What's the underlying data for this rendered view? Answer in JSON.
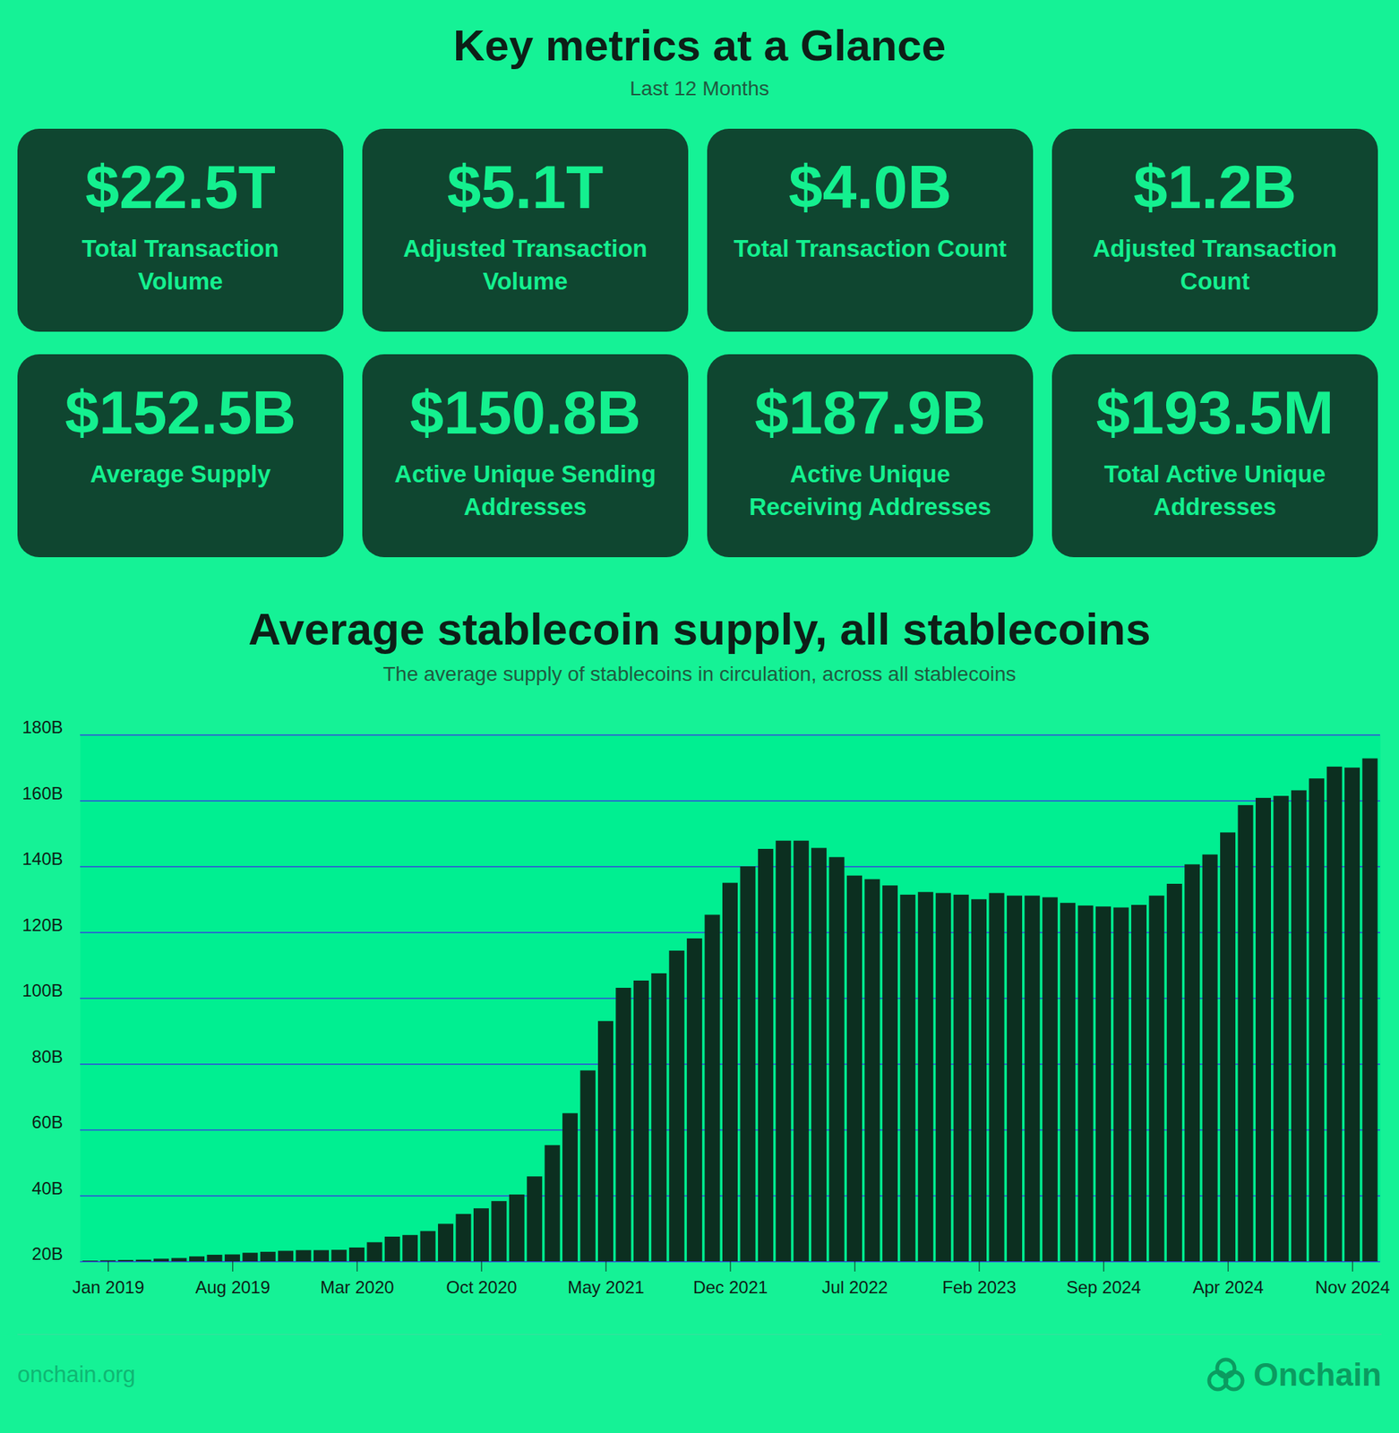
{
  "header": {
    "title": "Key metrics at a Glance",
    "subtitle": "Last 12 Months"
  },
  "metrics": [
    {
      "value": "$22.5T",
      "label": "Total Transaction Volume"
    },
    {
      "value": "$5.1T",
      "label": "Adjusted Transaction Volume"
    },
    {
      "value": "$4.0B",
      "label": "Total Transaction Count"
    },
    {
      "value": "$1.2B",
      "label": "Adjusted Transaction Count"
    },
    {
      "value": "$152.5B",
      "label": "Average Supply"
    },
    {
      "value": "$150.8B",
      "label": "Active Unique Sending Addresses"
    },
    {
      "value": "$187.9B",
      "label": "Active Unique Receiving Addresses"
    },
    {
      "value": "$193.5M",
      "label": "Total Active Unique Addresses"
    }
  ],
  "chart_data": {
    "type": "bar",
    "title": "Average stablecoin supply, all stablecoins",
    "subtitle": "The average supply of stablecoins in circulation, across all stablecoins",
    "categories": [
      null,
      "Jan 2019",
      null,
      null,
      null,
      null,
      null,
      null,
      "Aug 2019",
      null,
      null,
      null,
      null,
      null,
      null,
      "Mar 2020",
      null,
      null,
      null,
      null,
      null,
      null,
      "Oct 2020",
      null,
      null,
      null,
      null,
      null,
      null,
      "May 2021",
      null,
      null,
      null,
      null,
      null,
      null,
      "Dec 2021",
      null,
      null,
      null,
      null,
      null,
      null,
      "Jul 2022",
      null,
      null,
      null,
      null,
      null,
      null,
      "Feb 2023",
      null,
      null,
      null,
      null,
      null,
      null,
      "Sep 2024",
      null,
      null,
      null,
      null,
      null,
      null,
      "Apr 2024",
      null,
      null,
      null,
      null,
      null,
      null,
      "Nov 2024",
      null
    ],
    "values": [
      20.2,
      20.3,
      20.4,
      20.5,
      20.8,
      21.0,
      21.5,
      22.0,
      22.1,
      22.6,
      22.9,
      23.2,
      23.4,
      23.4,
      23.5,
      24.2,
      25.8,
      27.5,
      28.0,
      29.2,
      31.4,
      34.4,
      36.1,
      38.3,
      40.3,
      45.8,
      55.3,
      65.0,
      78.0,
      93.0,
      103.1,
      105.3,
      107.5,
      114.4,
      118.1,
      125.3,
      135.0,
      140.0,
      145.3,
      147.8,
      147.8,
      145.6,
      142.8,
      137.2,
      136.1,
      134.2,
      131.4,
      132.2,
      131.9,
      131.4,
      130.0,
      131.9,
      131.1,
      131.1,
      130.6,
      128.9,
      128.1,
      127.8,
      127.5,
      128.3,
      131.1,
      134.7,
      140.6,
      143.6,
      150.3,
      158.6,
      160.8,
      161.4,
      163.1,
      166.7,
      170.3,
      170.0,
      172.8
    ],
    "color": "#0c2f20",
    "ylim": [
      20,
      180
    ],
    "yticks": [
      {
        "value": 20,
        "label": "20B"
      },
      {
        "value": 40,
        "label": "40B"
      },
      {
        "value": 60,
        "label": "60B"
      },
      {
        "value": 80,
        "label": "80B"
      },
      {
        "value": 100,
        "label": "100B"
      },
      {
        "value": 120,
        "label": "120B"
      },
      {
        "value": 140,
        "label": "140B"
      },
      {
        "value": 160,
        "label": "160B"
      },
      {
        "value": 180,
        "label": "180B"
      }
    ],
    "grid": true
  },
  "footer": {
    "site": "onchain.org",
    "brand": "Onchain"
  }
}
